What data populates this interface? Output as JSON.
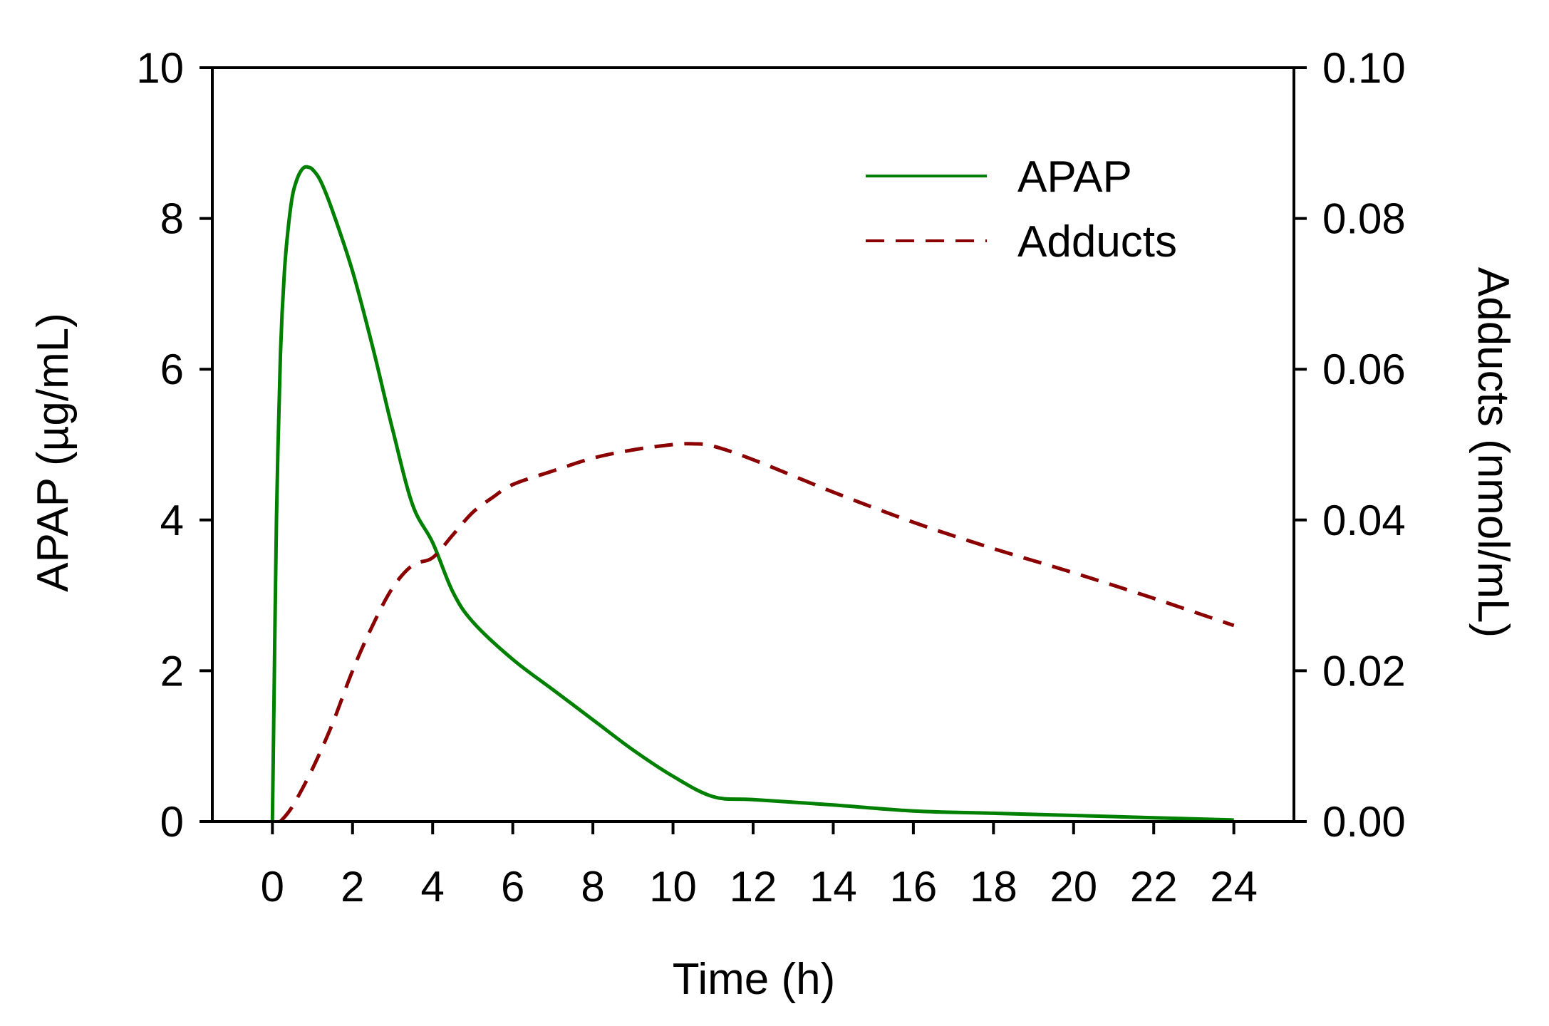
{
  "chart_data": {
    "type": "line",
    "title": "",
    "xlabel": "Time (h)",
    "ylabel_left": "APAP (µg/mL)",
    "ylabel_right": "Adducts (nmol/mL)",
    "xlim": [
      -1.5,
      25.5
    ],
    "ylim_left": [
      0,
      10
    ],
    "ylim_right": [
      0,
      0.1
    ],
    "x_ticks": [
      0,
      2,
      4,
      6,
      8,
      10,
      12,
      14,
      16,
      18,
      20,
      22,
      24
    ],
    "x_tick_labels": [
      "0",
      "2",
      "4",
      "6",
      "8",
      "10",
      "12",
      "14",
      "16",
      "18",
      "20",
      "22",
      "24"
    ],
    "y_left_ticks": [
      0,
      2,
      4,
      6,
      8,
      10
    ],
    "y_left_tick_labels": [
      "0",
      "2",
      "4",
      "6",
      "8",
      "10"
    ],
    "y_right_ticks": [
      0,
      0.02,
      0.04,
      0.06,
      0.08,
      0.1
    ],
    "y_right_tick_labels": [
      "0.00",
      "0.02",
      "0.04",
      "0.06",
      "0.08",
      "0.10"
    ],
    "grid": false,
    "legend_position": "top-right",
    "series": [
      {
        "name": "APAP",
        "axis": "left",
        "color": "#008000",
        "style": "solid",
        "x": [
          0,
          0.05,
          0.1,
          0.2,
          0.3,
          0.4,
          0.5,
          0.6,
          0.7,
          0.8,
          0.9,
          1.0,
          1.2,
          1.5,
          2.0,
          2.5,
          3.0,
          3.5,
          4.0,
          4.5,
          5.0,
          6.0,
          7.0,
          8.0,
          9.0,
          10.0,
          11.0,
          12.0,
          14.0,
          16.0,
          18.0,
          20.0,
          22.0,
          24.0
        ],
        "values": [
          0,
          2.0,
          4.0,
          6.2,
          7.3,
          7.9,
          8.3,
          8.5,
          8.62,
          8.68,
          8.68,
          8.65,
          8.5,
          8.1,
          7.3,
          6.3,
          5.2,
          4.2,
          3.7,
          3.05,
          2.65,
          2.15,
          1.75,
          1.35,
          0.95,
          0.6,
          0.33,
          0.29,
          0.22,
          0.14,
          0.11,
          0.08,
          0.05,
          0.02
        ]
      },
      {
        "name": "Adducts",
        "axis": "right",
        "color": "#8b0000",
        "style": "dashed",
        "x": [
          0.2,
          0.5,
          1.0,
          1.5,
          2.0,
          2.5,
          3.0,
          3.5,
          4.0,
          4.5,
          5.0,
          5.5,
          6.0,
          7.0,
          8.0,
          9.0,
          10.0,
          10.5,
          11.0,
          12.0,
          14.0,
          16.0,
          18.0,
          20.0,
          22.0,
          24.0
        ],
        "values": [
          0.0,
          0.002,
          0.007,
          0.013,
          0.02,
          0.026,
          0.031,
          0.034,
          0.035,
          0.038,
          0.041,
          0.043,
          0.0447,
          0.0465,
          0.0482,
          0.0493,
          0.05,
          0.0501,
          0.0498,
          0.048,
          0.0437,
          0.0397,
          0.0362,
          0.033,
          0.0296,
          0.026
        ]
      }
    ]
  }
}
